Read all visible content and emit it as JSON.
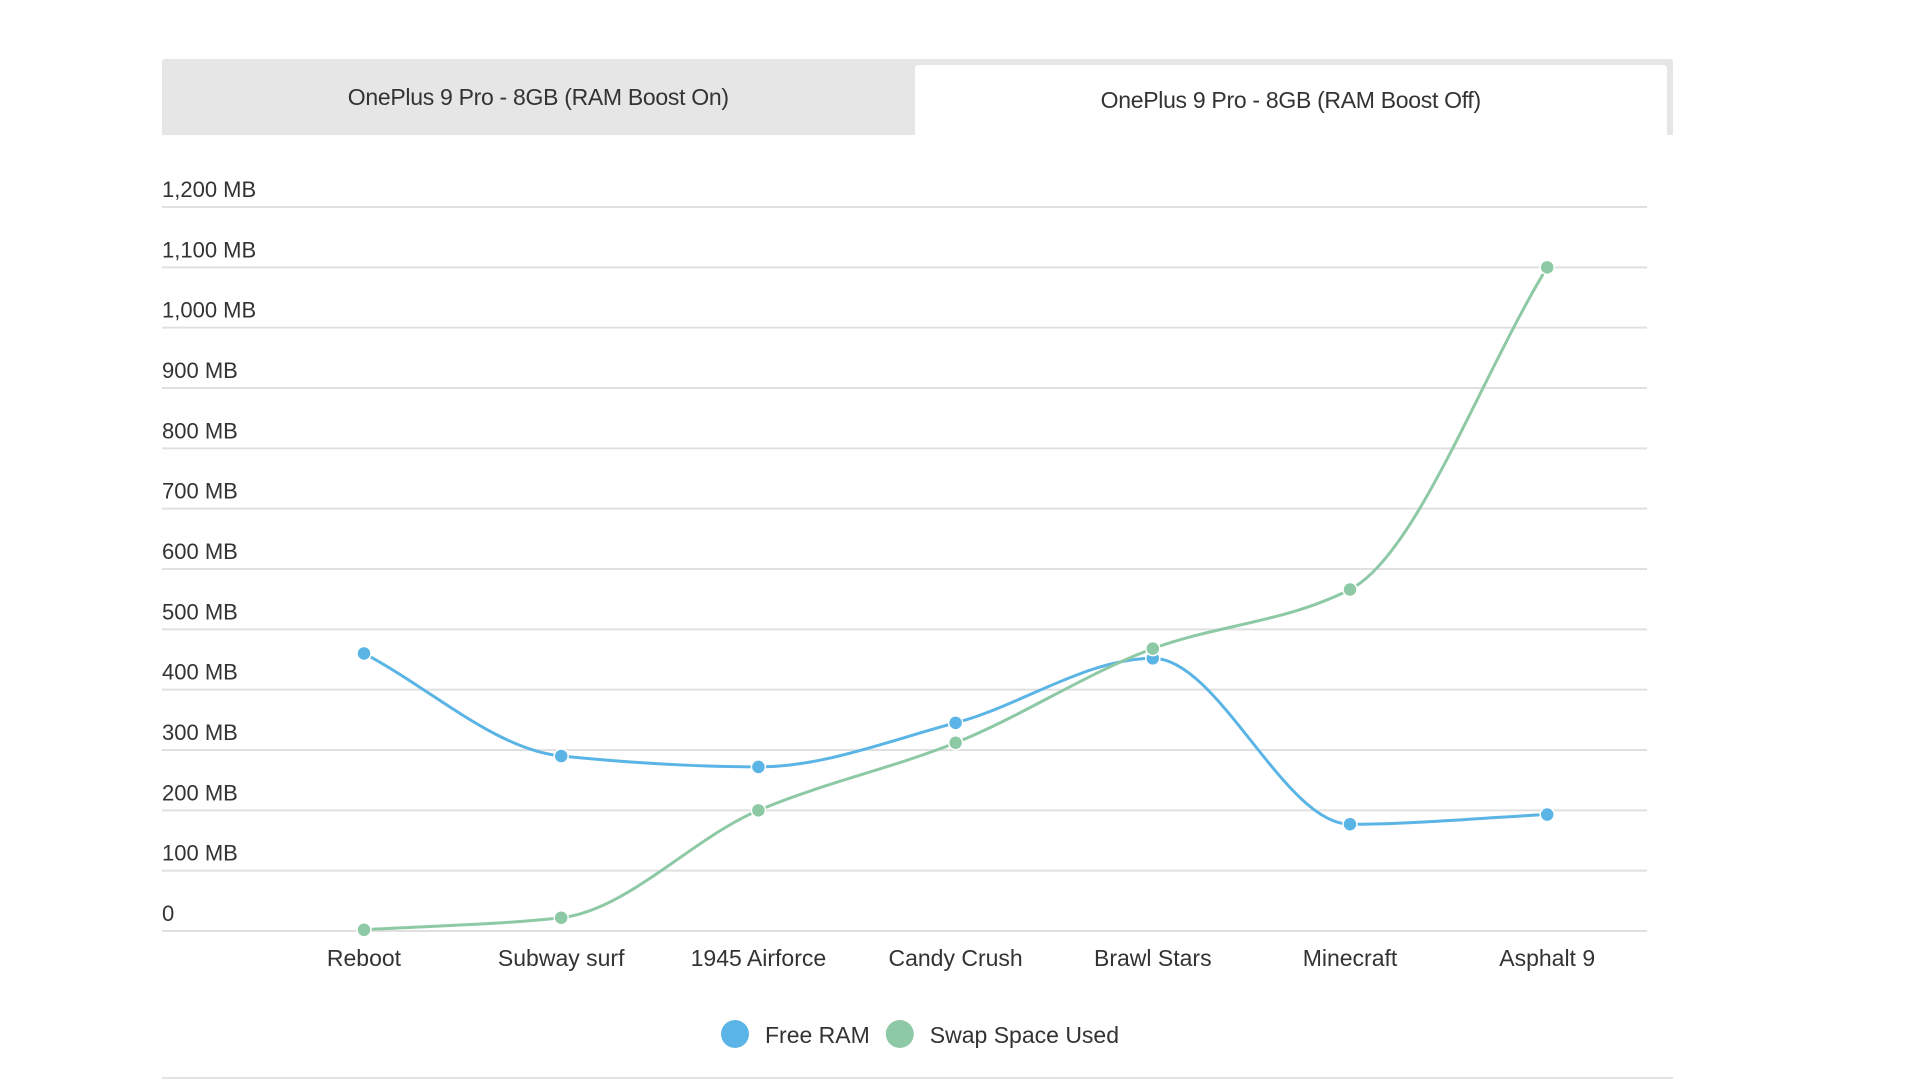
{
  "tabs": [
    {
      "label": "OnePlus 9 Pro - 8GB (RAM Boost On)",
      "active": false
    },
    {
      "label": "OnePlus 9 Pro - 8GB (RAM Boost Off)",
      "active": true
    }
  ],
  "chart_data": {
    "type": "line",
    "title": "",
    "xlabel": "",
    "ylabel": "",
    "categories": [
      "Reboot",
      "Subway surf",
      "1945 Airforce",
      "Candy Crush",
      "Brawl Stars",
      "Minecraft",
      "Asphalt 9"
    ],
    "ylim": [
      0,
      1200
    ],
    "yticks": [
      0,
      100,
      200,
      300,
      400,
      500,
      600,
      700,
      800,
      900,
      1000,
      1100,
      1200
    ],
    "ytick_labels": [
      "0",
      "100 MB",
      "200 MB",
      "300 MB",
      "400 MB",
      "500 MB",
      "600 MB",
      "700 MB",
      "800 MB",
      "900 MB",
      "1,000 MB",
      "1,100 MB",
      "1,200 MB"
    ],
    "grid": true,
    "legend_position": "bottom-center",
    "series": [
      {
        "name": "Free RAM",
        "color": "#5ab4e5",
        "values": [
          460,
          290,
          272,
          345,
          452,
          177,
          193
        ]
      },
      {
        "name": "Swap Space Used",
        "color": "#8ec9a6",
        "values": [
          2,
          22,
          200,
          312,
          468,
          566,
          1100
        ]
      }
    ]
  }
}
